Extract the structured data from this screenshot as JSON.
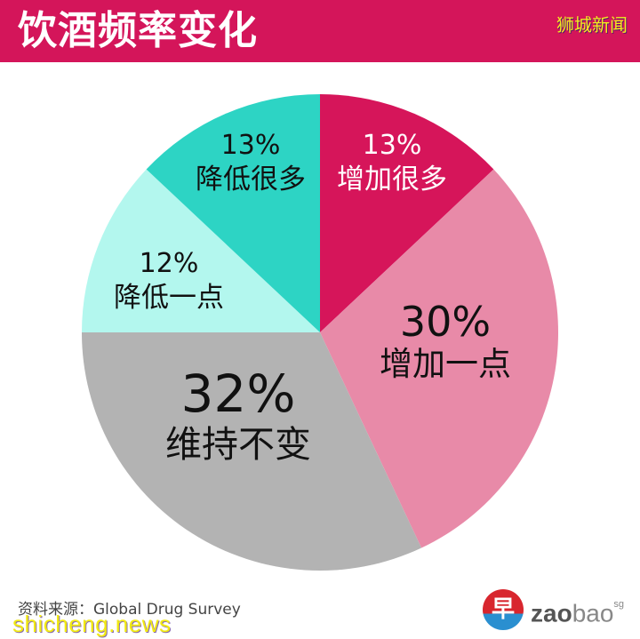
{
  "header": {
    "title": "饮酒频率变化",
    "brand": "狮城新闻",
    "background": "#D4155A"
  },
  "chart_data": {
    "type": "pie",
    "title": "饮酒频率变化",
    "start_angle": "12 o'clock",
    "direction": "clockwise",
    "legend": "none (labels inside slices)",
    "categories": [
      "增加很多",
      "增加一点",
      "维持不变",
      "降低一点",
      "降低很多"
    ],
    "values": [
      13,
      30,
      32,
      12,
      13
    ],
    "unit": "%",
    "colors": [
      "#D6155A",
      "#E88AA8",
      "#B3B3B3",
      "#B3F7EE",
      "#2DD4C4"
    ],
    "slices": [
      {
        "label": "增加很多",
        "value": 13,
        "pct_label": "13%",
        "color": "#D6155A"
      },
      {
        "label": "增加一点",
        "value": 30,
        "pct_label": "30%",
        "color": "#E88AA8"
      },
      {
        "label": "维持不变",
        "value": 32,
        "pct_label": "32%",
        "color": "#B3B3B3"
      },
      {
        "label": "降低一点",
        "value": 12,
        "pct_label": "12%",
        "color": "#B3F7EE"
      },
      {
        "label": "降低很多",
        "value": 13,
        "pct_label": "13%",
        "color": "#2DD4C4"
      }
    ]
  },
  "footer": {
    "source": "资料来源：Global Drug Survey",
    "watermark": "shicheng.news",
    "logo": {
      "glyph": "早",
      "zao": "zao",
      "bao": "bao",
      "sg": "sg"
    }
  }
}
